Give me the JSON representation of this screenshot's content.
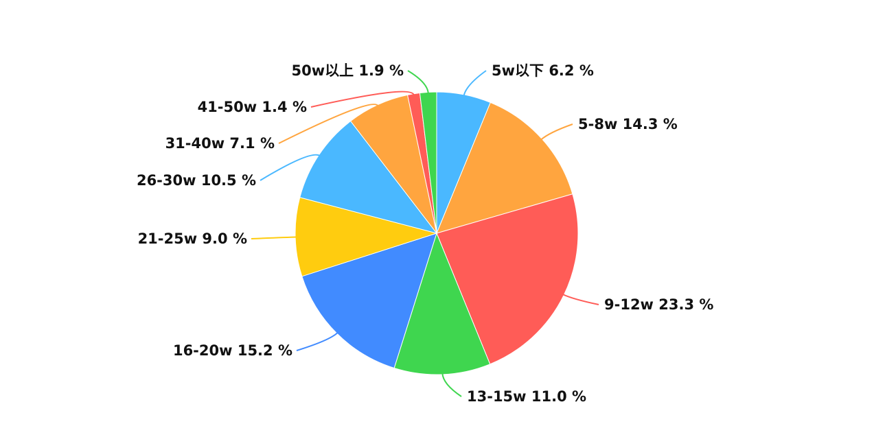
{
  "chart_data": {
    "type": "pie",
    "title": "",
    "slices": [
      {
        "label": "5w以下",
        "value": 6.2,
        "display": "5w以下 6.2 %",
        "color": "#4ab8ff"
      },
      {
        "label": "5-8w",
        "value": 14.3,
        "display": "5-8w 14.3 %",
        "color": "#ffa53f"
      },
      {
        "label": "9-12w",
        "value": 23.3,
        "display": "9-12w 23.3 %",
        "color": "#ff5c57"
      },
      {
        "label": "13-15w",
        "value": 11.0,
        "display": "13-15w 11.0 %",
        "color": "#3fd64f"
      },
      {
        "label": "16-20w",
        "value": 15.2,
        "display": "16-20w 15.2 %",
        "color": "#418bff"
      },
      {
        "label": "21-25w",
        "value": 9.0,
        "display": "21-25w 9.0 %",
        "color": "#ffcc0f"
      },
      {
        "label": "26-30w",
        "value": 10.5,
        "display": "26-30w 10.5 %",
        "color": "#4ab8ff"
      },
      {
        "label": "31-40w",
        "value": 7.1,
        "display": "31-40w 7.1 %",
        "color": "#ffa53f"
      },
      {
        "label": "41-50w",
        "value": 1.4,
        "display": "41-50w 1.4 %",
        "color": "#ff5c57"
      },
      {
        "label": "50w以上",
        "value": 1.9,
        "display": "50w以上 1.9 %",
        "color": "#3fd64f"
      }
    ],
    "legend": "none",
    "data_labels": "outside-with-leader-lines"
  }
}
